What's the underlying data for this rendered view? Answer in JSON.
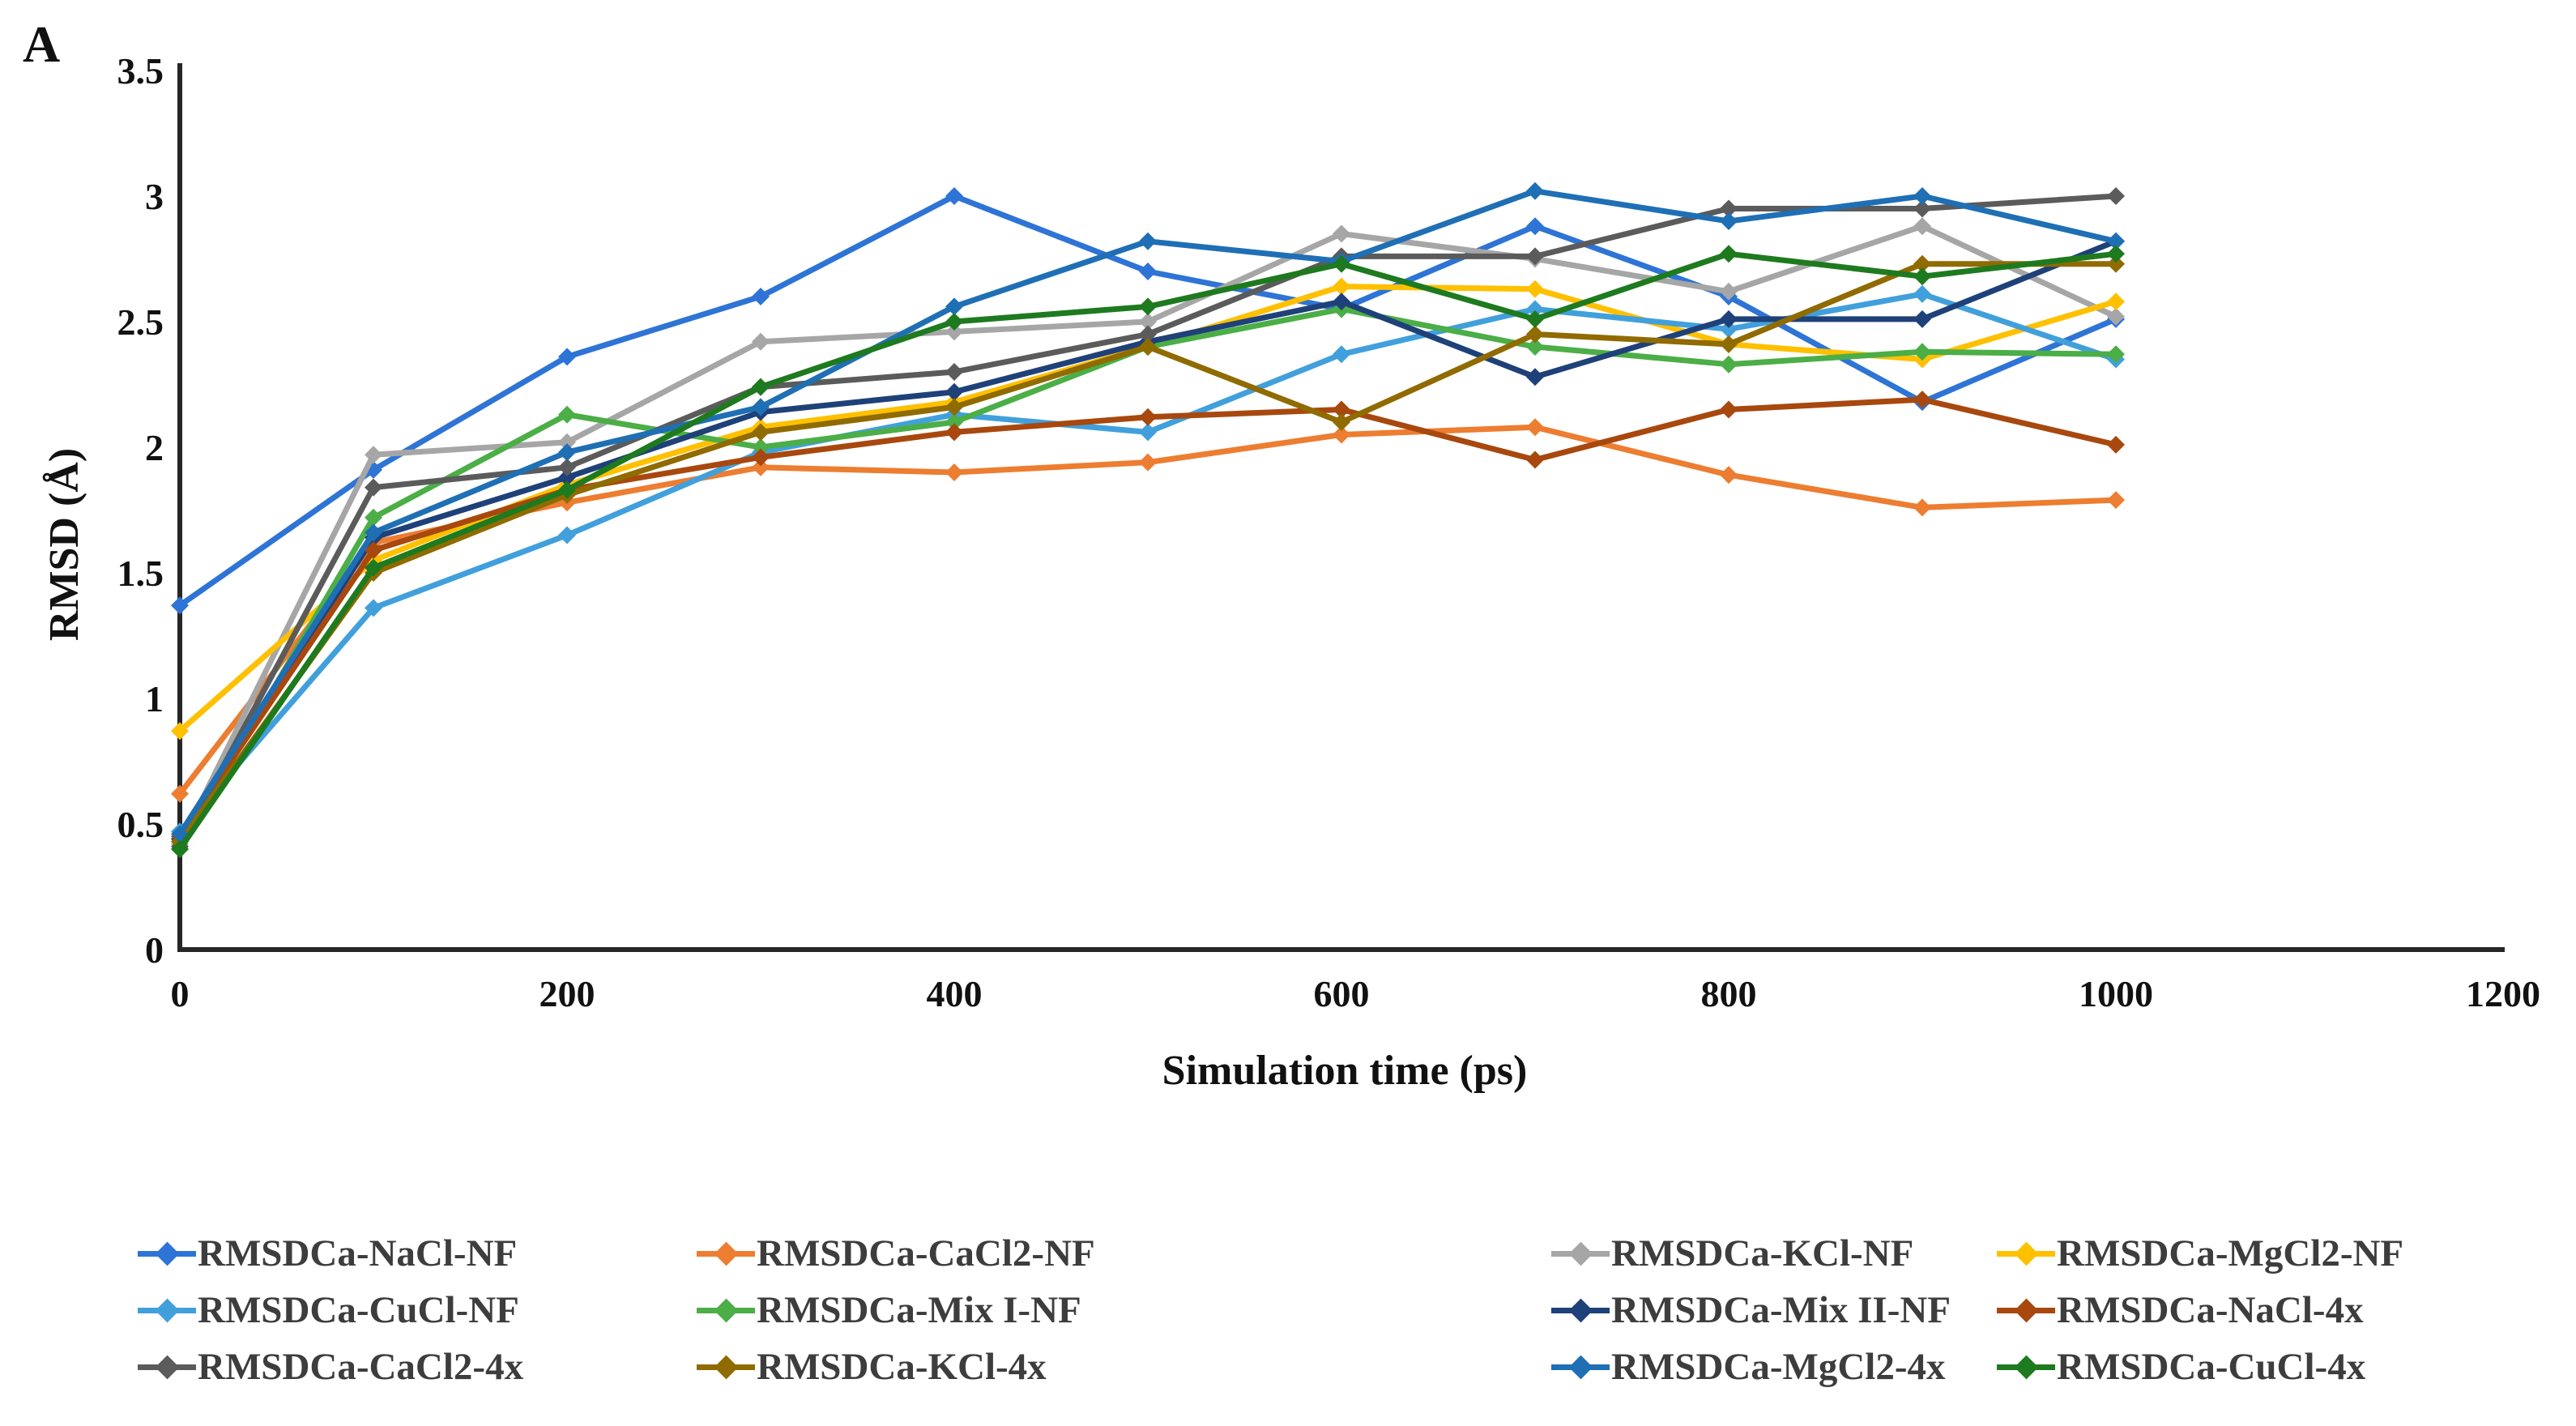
{
  "panel_label": "A",
  "chart_data": {
    "type": "line",
    "title": "",
    "xlabel": "Simulation time (ps)",
    "ylabel": "RMSD (Å)",
    "xlim": [
      0,
      1200
    ],
    "ylim": [
      0,
      3.5
    ],
    "grid": false,
    "legend_position": "bottom",
    "marker": "diamond",
    "x_ticks": [
      0,
      200,
      400,
      600,
      800,
      1000,
      1200
    ],
    "y_ticks": [
      "0",
      "0.5",
      "1",
      "1.5",
      "2",
      "2.5",
      "3",
      "3.5"
    ],
    "y_tick_values": [
      0,
      0.5,
      1,
      1.5,
      2,
      2.5,
      3,
      3.5
    ],
    "x": [
      0,
      100,
      200,
      300,
      400,
      500,
      600,
      700,
      800,
      900,
      1000
    ],
    "series": [
      {
        "name": "RMSDCa-NaCl-NF",
        "color": "#2E74D6",
        "values": [
          1.37,
          1.91,
          2.36,
          2.6,
          3.0,
          2.7,
          2.55,
          2.88,
          2.6,
          2.18,
          2.51
        ]
      },
      {
        "name": "RMSDCa-CaCl2-NF",
        "color": "#ED7D31",
        "values": [
          0.62,
          1.62,
          1.78,
          1.92,
          1.9,
          1.94,
          2.05,
          2.08,
          1.89,
          1.76,
          1.79
        ]
      },
      {
        "name": "RMSDCa-KCl-NF",
        "color": "#A6A6A6",
        "values": [
          0.42,
          1.97,
          2.02,
          2.42,
          2.46,
          2.5,
          2.85,
          2.75,
          2.62,
          2.88,
          2.52
        ]
      },
      {
        "name": "RMSDCa-MgCl2-NF",
        "color": "#FFC000",
        "values": [
          0.87,
          1.55,
          1.85,
          2.08,
          2.18,
          2.4,
          2.64,
          2.63,
          2.41,
          2.35,
          2.58
        ]
      },
      {
        "name": "RMSDCa-CuCl-NF",
        "color": "#41A0DC",
        "values": [
          0.47,
          1.36,
          1.65,
          1.98,
          2.13,
          2.06,
          2.37,
          2.55,
          2.47,
          2.61,
          2.35
        ]
      },
      {
        "name": "RMSDCa-Mix I-NF",
        "color": "#4BAE46",
        "values": [
          0.4,
          1.72,
          2.13,
          2.0,
          2.1,
          2.4,
          2.55,
          2.4,
          2.33,
          2.38,
          2.37
        ]
      },
      {
        "name": "RMSDCa-Mix II-NF",
        "color": "#1F4179",
        "values": [
          0.44,
          1.64,
          1.88,
          2.14,
          2.22,
          2.42,
          2.58,
          2.28,
          2.51,
          2.51,
          2.82
        ]
      },
      {
        "name": "RMSDCa-NaCl-4x",
        "color": "#A8480E",
        "values": [
          0.45,
          1.59,
          1.83,
          1.96,
          2.06,
          2.12,
          2.15,
          1.95,
          2.15,
          2.19,
          2.01
        ]
      },
      {
        "name": "RMSDCa-CaCl2-4x",
        "color": "#5B5B5B",
        "values": [
          0.41,
          1.84,
          1.92,
          2.24,
          2.3,
          2.45,
          2.76,
          2.76,
          2.95,
          2.95,
          3.0
        ]
      },
      {
        "name": "RMSDCa-KCl-4x",
        "color": "#8F6B00",
        "values": [
          0.43,
          1.5,
          1.81,
          2.06,
          2.16,
          2.4,
          2.1,
          2.45,
          2.41,
          2.73,
          2.73
        ]
      },
      {
        "name": "RMSDCa-MgCl2-4x",
        "color": "#1F6FB5",
        "values": [
          0.46,
          1.66,
          1.98,
          2.16,
          2.56,
          2.82,
          2.74,
          3.02,
          2.9,
          3.0,
          2.82
        ]
      },
      {
        "name": "RMSDCa-CuCl-4x",
        "color": "#1E7A1E",
        "values": [
          0.4,
          1.52,
          1.83,
          2.24,
          2.5,
          2.56,
          2.73,
          2.51,
          2.77,
          2.68,
          2.77
        ]
      }
    ]
  }
}
